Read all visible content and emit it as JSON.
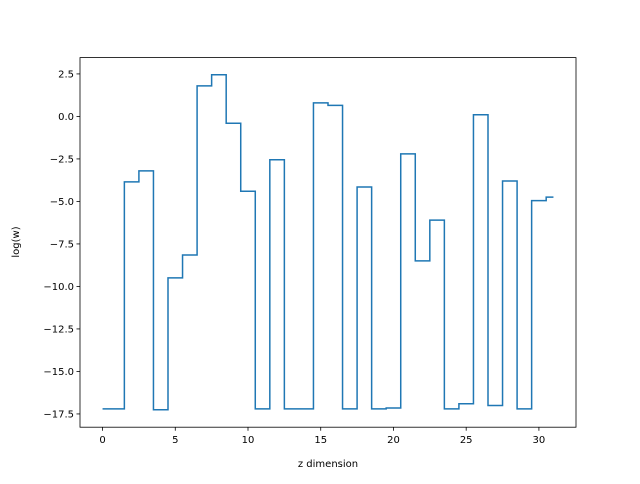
{
  "chart_data": {
    "type": "step",
    "xlabel": "z dimension",
    "ylabel": "log(w)",
    "color": "#1f77b4",
    "x": [
      0,
      1,
      2,
      3,
      4,
      5,
      6,
      7,
      8,
      9,
      10,
      11,
      12,
      13,
      14,
      15,
      16,
      17,
      18,
      19,
      20,
      21,
      22,
      23,
      24,
      25,
      26,
      27,
      28,
      29,
      30,
      31
    ],
    "values": [
      -17.2,
      -17.2,
      -3.85,
      -3.2,
      -17.25,
      -9.5,
      -8.15,
      1.8,
      2.45,
      -0.4,
      -4.4,
      -17.2,
      -2.55,
      -17.2,
      -17.2,
      0.8,
      0.65,
      -17.2,
      -4.15,
      -17.2,
      -17.15,
      -2.2,
      -8.5,
      -6.1,
      -17.2,
      -16.9,
      0.1,
      -17.0,
      -3.8,
      -17.2,
      -4.95,
      -4.75
    ],
    "xlim": [
      -1.55,
      32.55
    ],
    "ylim": [
      -18.28,
      3.46
    ],
    "xticks": [
      0,
      5,
      10,
      15,
      20,
      25,
      30
    ],
    "yticks": [
      {
        "value": 2.5,
        "label": "2.5"
      },
      {
        "value": 0,
        "label": "0.0"
      },
      {
        "value": -2.5,
        "label": "−2.5"
      },
      {
        "value": -5,
        "label": "−5.0"
      },
      {
        "value": -7.5,
        "label": "−7.5"
      },
      {
        "value": -10,
        "label": "−10.0"
      },
      {
        "value": -12.5,
        "label": "−12.5"
      },
      {
        "value": -15,
        "label": "−15.0"
      },
      {
        "value": -17.5,
        "label": "−17.5"
      }
    ]
  }
}
